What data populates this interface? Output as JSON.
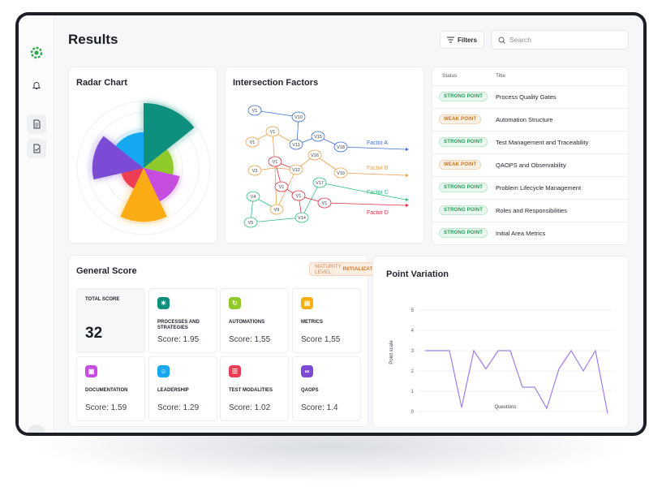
{
  "page": {
    "title": "Results"
  },
  "toolbar": {
    "filters_label": "Filters",
    "search_placeholder": "Search"
  },
  "sidebar": {
    "items": [
      {
        "icon": "logo-icon"
      },
      {
        "icon": "bell-icon"
      },
      {
        "icon": "document-icon"
      },
      {
        "icon": "document-check-icon"
      }
    ]
  },
  "radar": {
    "title": "Radar Chart",
    "chart_data": {
      "type": "polar-area",
      "series": [
        {
          "color": "#0f8f7d",
          "value": 1.0
        },
        {
          "color": "#8fc92a",
          "value": 0.46
        },
        {
          "color": "#c54de0",
          "value": 0.57
        },
        {
          "color": "#fbab14",
          "value": 0.83
        },
        {
          "color": "#ec3d52",
          "value": 0.35
        },
        {
          "color": "#7c4bd6",
          "value": 0.79
        },
        {
          "color": "#15a8f0",
          "value": 0.55
        }
      ]
    }
  },
  "intersection": {
    "title": "Intersection Factors",
    "factors": [
      {
        "label": "Factor A",
        "color": "#3b6fd0"
      },
      {
        "label": "Factor B",
        "color": "#f0a04b"
      },
      {
        "label": "Factor C",
        "color": "#2ec07a"
      },
      {
        "label": "Factor D",
        "color": "#e0313f"
      }
    ],
    "nodes": [
      {
        "label": "V1",
        "color": "#3b6fd0"
      },
      {
        "label": "V10",
        "color": "#3b6fd0"
      },
      {
        "label": "V1",
        "color": "#f0a04b"
      },
      {
        "label": "V1",
        "color": "#f0a04b"
      },
      {
        "label": "V11",
        "color": "#3b6fd0"
      },
      {
        "label": "V15",
        "color": "#3b6fd0"
      },
      {
        "label": "V18",
        "color": "#3b6fd0"
      },
      {
        "label": "V1",
        "color": "#e0313f"
      },
      {
        "label": "V16",
        "color": "#f0a04b"
      },
      {
        "label": "V3",
        "color": "#f0a04b"
      },
      {
        "label": "V12",
        "color": "#f0a04b"
      },
      {
        "label": "V19",
        "color": "#f0a04b"
      },
      {
        "label": "V1",
        "color": "#e0313f"
      },
      {
        "label": "V17",
        "color": "#2ec07a"
      },
      {
        "label": "V4",
        "color": "#2ec07a"
      },
      {
        "label": "V1",
        "color": "#e0313f"
      },
      {
        "label": "V1",
        "color": "#e0313f"
      },
      {
        "label": "V9",
        "color": "#f0a04b"
      },
      {
        "label": "V14",
        "color": "#2ec07a"
      },
      {
        "label": "V5",
        "color": "#2ec07a"
      }
    ]
  },
  "status_table": {
    "headers": {
      "status": "Status",
      "title": "Title"
    },
    "rows": [
      {
        "status": "STRONG POINT",
        "kind": "strong",
        "title": "Process Quality Gates"
      },
      {
        "status": "WEAK POINT",
        "kind": "weak",
        "title": "Automation Structure"
      },
      {
        "status": "STRONG POINT",
        "kind": "strong",
        "title": "Test Management and Traceability"
      },
      {
        "status": "WEAK POINT",
        "kind": "weak",
        "title": "QAOPS and Observability"
      },
      {
        "status": "STRONG POINT",
        "kind": "strong",
        "title": "Problem Lifecycle Management"
      },
      {
        "status": "STRONG POINT",
        "kind": "strong",
        "title": "Roles and Responsibilities"
      },
      {
        "status": "STRONG POINT",
        "kind": "strong",
        "title": "Initial Area Metrics"
      }
    ]
  },
  "general_score": {
    "title": "General Score",
    "maturity_prefix": "MATURITY LEVEL:",
    "maturity_value": "INITIALIZATION",
    "total_label": "TOTAL SCORE",
    "total_value": "32",
    "tiles": [
      {
        "label": "PROCESSES AND STRATEGIES",
        "score": "Score: 1.95",
        "color": "#0f8f7d",
        "icon": "sparkle-icon"
      },
      {
        "label": "AUTOMATIONS",
        "score": "Score: 1,55",
        "color": "#8fc92a",
        "icon": "refresh-icon"
      },
      {
        "label": "METRICS",
        "score": "Score 1,55",
        "color": "#fbab14",
        "icon": "chart-icon"
      },
      {
        "label": "DOCUMENTATION",
        "score": "Score: 1.59",
        "color": "#c54de0",
        "icon": "file-icon"
      },
      {
        "label": "LEADERSHIP",
        "score": "Score: 1.29",
        "color": "#15a8f0",
        "icon": "people-icon"
      },
      {
        "label": "TEST MODALITIES",
        "score": "Score: 1.02",
        "color": "#ec3d52",
        "icon": "list-icon"
      },
      {
        "label": "QAOPS",
        "score": "Score: 1.4",
        "color": "#7c4bd6",
        "icon": "infinity-icon"
      }
    ]
  },
  "point_variation": {
    "title": "Point Variation",
    "chart_data": {
      "type": "line",
      "xlabel": "Questions",
      "ylabel": "Point scale",
      "ylim": [
        0,
        5
      ],
      "yticks": [
        "5",
        "4",
        "3",
        "2",
        "1",
        "0"
      ],
      "color": "#9d7fe6",
      "values": [
        3,
        3,
        3,
        0.2,
        3,
        2.1,
        3,
        3,
        1.2,
        1.2,
        0.15,
        2.1,
        3,
        2,
        3,
        -0.1
      ]
    }
  }
}
